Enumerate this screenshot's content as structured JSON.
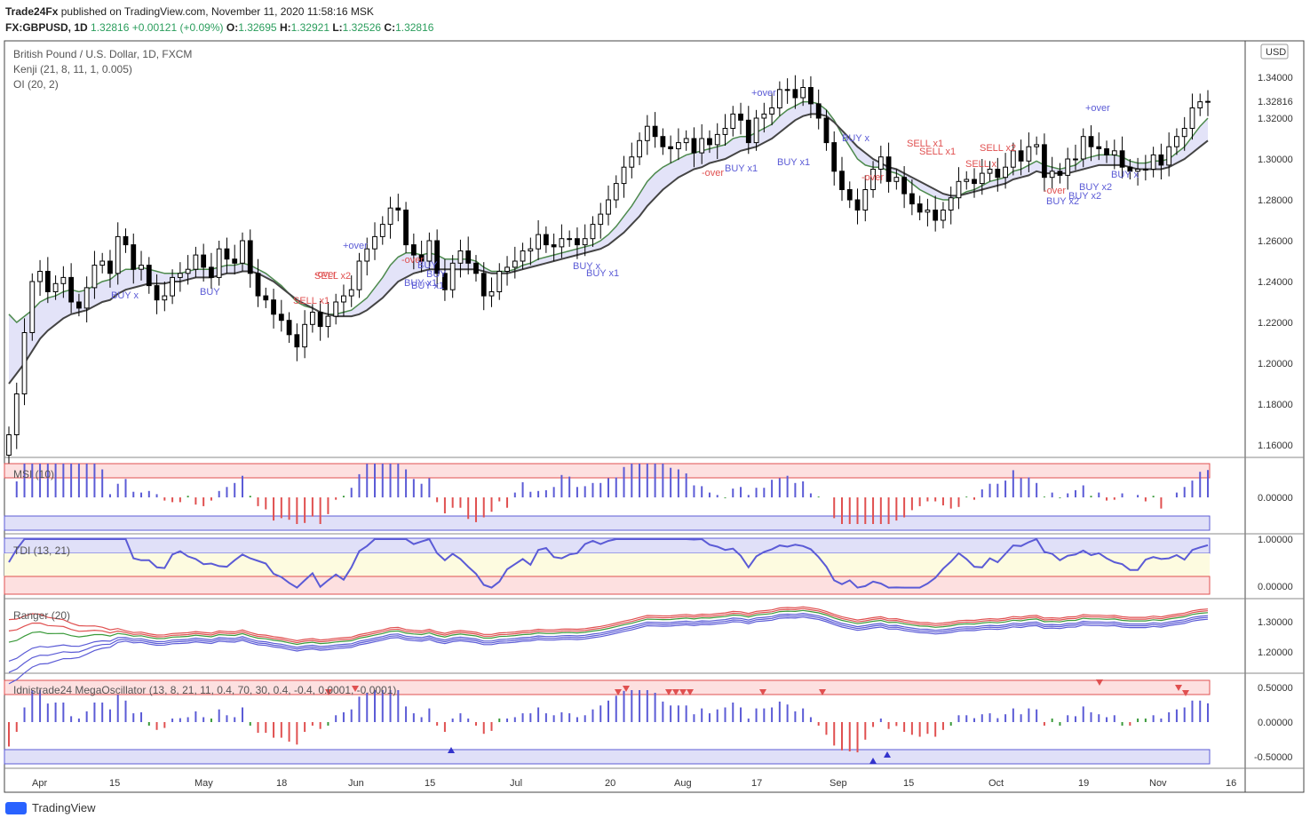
{
  "header": {
    "publisher": "Trade24Fx",
    "published_text": "published on TradingView.com, November 11, 2020 11:58:16 MSK",
    "symbol": "FX:GBPUSD, 1D",
    "last": "1.32816",
    "change": "+0.00121 (+0.09%)",
    "o_label": "O:",
    "o": "1.32695",
    "h_label": "H:",
    "h": "1.32921",
    "l_label": "L:",
    "l": "1.32526",
    "c_label": "C:",
    "c": "1.32816"
  },
  "legends": {
    "main_title": "British Pound / U.S. Dollar, 1D, FXCM",
    "kenji": "Kenji (21, 8, 11, 1, 0.005)",
    "oi": "OI (20, 2)",
    "msi": "MSI (10)",
    "tdi": "TDI (13, 21)",
    "ranger": "Ranger (20)",
    "mega": "Idnistrade24 MegaOscillator (13, 8, 21, 11, 0.4, 70, 30, 0.4, -0.4, 0.0001, -0.0001)"
  },
  "currency_badge": "USD",
  "last_price_tag": "1.32816",
  "x_ticks": [
    "Apr",
    "15",
    "May",
    "18",
    "Jun",
    "15",
    "Jul",
    "20",
    "Aug",
    "17",
    "Sep",
    "15",
    "Oct",
    "19",
    "Nov",
    "16"
  ],
  "y_ticks": {
    "main": [
      "1.34000",
      "1.32000",
      "1.30000",
      "1.28000",
      "1.26000",
      "1.24000",
      "1.22000",
      "1.20000",
      "1.18000",
      "1.16000"
    ],
    "msi": [
      "0.00000"
    ],
    "tdi": [
      "1.00000",
      "0.00000"
    ],
    "ranger": [
      "1.30000",
      "1.20000"
    ],
    "mega": [
      "0.50000",
      "0.00000",
      "-0.50000"
    ]
  },
  "signals": [
    "BUY x",
    "BUY",
    "SELL x2",
    "-over",
    "SELL x1",
    "+over",
    "BUY x1",
    "-over",
    "BUY",
    "BUY x1",
    "BUY",
    "BUY x",
    "+over",
    "BUY x1",
    "-over",
    "BUY x1",
    "BUY x1",
    "BUY x",
    "-over",
    "SELL x1",
    "SELL x1",
    "SELL x2",
    "SELL x",
    "-over",
    "BUY x2",
    "BUY x2",
    "+over",
    "BUY x2",
    "BUY x"
  ],
  "footer": {
    "brand": "TradingView"
  },
  "colors": {
    "bull": "#ffffff",
    "bear": "#000000",
    "blue": "#5b5bd6",
    "red": "#e05050",
    "green": "#3a9a3a"
  },
  "chart_data": {
    "type": "candlestick",
    "title": "British Pound / U.S. Dollar, 1D, FXCM",
    "x_range": [
      "2020-03-23",
      "2020-11-11"
    ],
    "ylim": [
      1.15,
      1.35
    ],
    "closes": [
      1.165,
      1.185,
      1.215,
      1.24,
      1.245,
      1.235,
      1.239,
      1.242,
      1.23,
      1.227,
      1.237,
      1.248,
      1.25,
      1.244,
      1.262,
      1.258,
      1.246,
      1.248,
      1.238,
      1.231,
      1.233,
      1.242,
      1.244,
      1.246,
      1.253,
      1.247,
      1.242,
      1.256,
      1.251,
      1.249,
      1.26,
      1.244,
      1.233,
      1.231,
      1.224,
      1.221,
      1.214,
      1.208,
      1.219,
      1.225,
      1.218,
      1.223,
      1.23,
      1.233,
      1.236,
      1.25,
      1.256,
      1.262,
      1.268,
      1.276,
      1.275,
      1.258,
      1.253,
      1.25,
      1.26,
      1.244,
      1.236,
      1.249,
      1.255,
      1.249,
      1.244,
      1.233,
      1.235,
      1.245,
      1.247,
      1.25,
      1.255,
      1.256,
      1.263,
      1.258,
      1.257,
      1.261,
      1.261,
      1.258,
      1.261,
      1.268,
      1.273,
      1.28,
      1.288,
      1.296,
      1.301,
      1.309,
      1.316,
      1.311,
      1.306,
      1.305,
      1.308,
      1.31,
      1.303,
      1.31,
      1.307,
      1.312,
      1.315,
      1.322,
      1.319,
      1.308,
      1.32,
      1.322,
      1.325,
      1.334,
      1.334,
      1.33,
      1.335,
      1.327,
      1.32,
      1.308,
      1.294,
      1.285,
      1.28,
      1.275,
      1.285,
      1.295,
      1.301,
      1.289,
      1.291,
      1.283,
      1.278,
      1.274,
      1.275,
      1.27,
      1.275,
      1.281,
      1.289,
      1.29,
      1.288,
      1.293,
      1.295,
      1.291,
      1.296,
      1.304,
      1.299,
      1.306,
      1.307,
      1.291,
      1.294,
      1.292,
      1.3,
      1.3,
      1.311,
      1.306,
      1.305,
      1.302,
      1.304,
      1.296,
      1.294,
      1.295,
      1.295,
      1.302,
      1.297,
      1.306,
      1.311,
      1.315,
      1.325,
      1.328,
      1.3282
    ],
    "kenji_fast": [
      1.224,
      1.22,
      1.223,
      1.226,
      1.23,
      1.232,
      1.233,
      1.235,
      1.236,
      1.235,
      1.236,
      1.238,
      1.24,
      1.241,
      1.244,
      1.246,
      1.246,
      1.247,
      1.246,
      1.245,
      1.244,
      1.244,
      1.244,
      1.245,
      1.246,
      1.246,
      1.246,
      1.247,
      1.248,
      1.248,
      1.249,
      1.248,
      1.246,
      1.244,
      1.241,
      1.238,
      1.234,
      1.23,
      1.228,
      1.227,
      1.225,
      1.224,
      1.224,
      1.225,
      1.226,
      1.229,
      1.232,
      1.237,
      1.242,
      1.248,
      1.252,
      1.254,
      1.254,
      1.253,
      1.254,
      1.253,
      1.251,
      1.251,
      1.251,
      1.251,
      1.25,
      1.247,
      1.245,
      1.245,
      1.245,
      1.246,
      1.248,
      1.249,
      1.251,
      1.252,
      1.253,
      1.254,
      1.255,
      1.256,
      1.257,
      1.258,
      1.26,
      1.263,
      1.267,
      1.272,
      1.277,
      1.283,
      1.289,
      1.293,
      1.296,
      1.298,
      1.3,
      1.302,
      1.303,
      1.304,
      1.305,
      1.306,
      1.307,
      1.31,
      1.311,
      1.311,
      1.313,
      1.315,
      1.317,
      1.321,
      1.324,
      1.326,
      1.328,
      1.328,
      1.327,
      1.324,
      1.319,
      1.312,
      1.306,
      1.3,
      1.297,
      1.296,
      1.296,
      1.294,
      1.293,
      1.291,
      1.288,
      1.285,
      1.283,
      1.281,
      1.28,
      1.28,
      1.282,
      1.284,
      1.285,
      1.287,
      1.289,
      1.29,
      1.291,
      1.294,
      1.295,
      1.297,
      1.299,
      1.297,
      1.296,
      1.295,
      1.296,
      1.297,
      1.3,
      1.301,
      1.302,
      1.302,
      1.302,
      1.301,
      1.299,
      1.298,
      1.298,
      1.299,
      1.299,
      1.3,
      1.303,
      1.306,
      1.311,
      1.316,
      1.32
    ],
    "kenji_slow": [
      1.19,
      1.195,
      1.2,
      1.206,
      1.212,
      1.216,
      1.219,
      1.222,
      1.224,
      1.225,
      1.226,
      1.228,
      1.23,
      1.231,
      1.234,
      1.236,
      1.237,
      1.238,
      1.239,
      1.239,
      1.239,
      1.24,
      1.24,
      1.241,
      1.242,
      1.242,
      1.242,
      1.243,
      1.244,
      1.244,
      1.245,
      1.245,
      1.244,
      1.242,
      1.24,
      1.237,
      1.234,
      1.231,
      1.229,
      1.227,
      1.225,
      1.224,
      1.223,
      1.223,
      1.223,
      1.224,
      1.226,
      1.229,
      1.232,
      1.236,
      1.24,
      1.242,
      1.244,
      1.245,
      1.246,
      1.246,
      1.246,
      1.246,
      1.246,
      1.246,
      1.246,
      1.245,
      1.244,
      1.244,
      1.244,
      1.245,
      1.246,
      1.247,
      1.248,
      1.249,
      1.25,
      1.251,
      1.252,
      1.253,
      1.254,
      1.255,
      1.256,
      1.258,
      1.261,
      1.264,
      1.268,
      1.272,
      1.277,
      1.281,
      1.285,
      1.288,
      1.291,
      1.293,
      1.295,
      1.296,
      1.298,
      1.299,
      1.3,
      1.302,
      1.304,
      1.305,
      1.306,
      1.308,
      1.31,
      1.313,
      1.316,
      1.319,
      1.321,
      1.322,
      1.322,
      1.321,
      1.318,
      1.314,
      1.31,
      1.306,
      1.303,
      1.3,
      1.298,
      1.296,
      1.295,
      1.293,
      1.291,
      1.289,
      1.287,
      1.285,
      1.283,
      1.282,
      1.282,
      1.283,
      1.284,
      1.285,
      1.286,
      1.287,
      1.288,
      1.29,
      1.291,
      1.292,
      1.294,
      1.293,
      1.293,
      1.293,
      1.293,
      1.294,
      1.295,
      1.296,
      1.297,
      1.297,
      1.297,
      1.297,
      1.296,
      1.295,
      1.295,
      1.295,
      1.295,
      1.296,
      1.298,
      1.3,
      1.303,
      1.306,
      1.309
    ]
  }
}
